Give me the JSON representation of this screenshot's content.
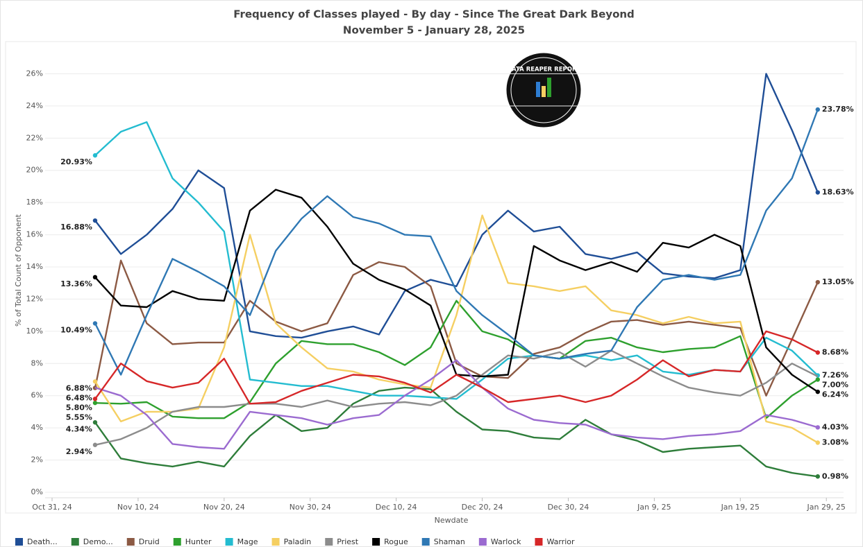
{
  "logo": "DATA REAPER REPORT",
  "chart_data": {
    "type": "line",
    "title": "Frequency of Classes played - By day - Since The Great Dark Beyond",
    "subtitle": "November 5 - January 28, 2025",
    "y_label": "% of Total Count of Opponent",
    "x_label": "Newdate",
    "x": [
      "2024-11-05",
      "2024-11-08",
      "2024-11-11",
      "2024-11-14",
      "2024-11-17",
      "2024-11-20",
      "2024-11-23",
      "2024-11-26",
      "2024-11-29",
      "2024-12-02",
      "2024-12-05",
      "2024-12-08",
      "2024-12-11",
      "2024-12-14",
      "2024-12-17",
      "2024-12-20",
      "2024-12-23",
      "2024-12-26",
      "2024-12-29",
      "2025-01-01",
      "2025-01-04",
      "2025-01-07",
      "2025-01-10",
      "2025-01-13",
      "2025-01-16",
      "2025-01-19",
      "2025-01-22",
      "2025-01-25",
      "2025-01-28"
    ],
    "xlim": [
      "2024-10-31",
      "2025-01-31"
    ],
    "xticks": [
      {
        "value": "2024-10-31",
        "label": "Oct 31, 24"
      },
      {
        "value": "2024-11-10",
        "label": "Nov 10, 24"
      },
      {
        "value": "2024-11-20",
        "label": "Nov 20, 24"
      },
      {
        "value": "2024-11-30",
        "label": "Nov 30, 24"
      },
      {
        "value": "2024-12-10",
        "label": "Dec 10, 24"
      },
      {
        "value": "2024-12-20",
        "label": "Dec 20, 24"
      },
      {
        "value": "2024-12-30",
        "label": "Dec 30, 24"
      },
      {
        "value": "2025-01-09",
        "label": "Jan 9, 25"
      },
      {
        "value": "2025-01-19",
        "label": "Jan 19, 25"
      },
      {
        "value": "2025-01-29",
        "label": "Jan 29, 25"
      }
    ],
    "ylim": [
      0,
      28
    ],
    "yticks": [
      {
        "value": 0,
        "label": "0%"
      },
      {
        "value": 2,
        "label": "2%"
      },
      {
        "value": 4,
        "label": "4%"
      },
      {
        "value": 6,
        "label": "6%"
      },
      {
        "value": 8,
        "label": "8%"
      },
      {
        "value": 10,
        "label": "10%"
      },
      {
        "value": 12,
        "label": "12%"
      },
      {
        "value": 14,
        "label": "14%"
      },
      {
        "value": 16,
        "label": "16%"
      },
      {
        "value": 18,
        "label": "18%"
      },
      {
        "value": 20,
        "label": "20%"
      },
      {
        "value": 22,
        "label": "22%"
      },
      {
        "value": 24,
        "label": "24%"
      },
      {
        "value": 26,
        "label": "26%"
      }
    ],
    "grid": true,
    "legend": "bottom",
    "series": [
      {
        "name": "Death...",
        "color": "#1f4e96",
        "values": [
          16.88,
          14.8,
          16.0,
          17.6,
          20.0,
          18.9,
          10.0,
          9.7,
          9.6,
          10.0,
          10.3,
          9.8,
          12.5,
          13.2,
          12.8,
          16.0,
          17.5,
          16.2,
          16.5,
          14.8,
          14.5,
          14.9,
          13.6,
          13.4,
          13.3,
          13.8,
          26.0,
          22.5,
          18.63
        ],
        "value_labels": [
          "16.88%",
          null,
          null,
          null,
          null,
          null,
          null,
          null,
          null,
          null,
          null,
          null,
          null,
          null,
          null,
          null,
          null,
          null,
          null,
          null,
          null,
          null,
          null,
          null,
          null,
          null,
          null,
          null,
          "18.63%"
        ]
      },
      {
        "name": "Demo...",
        "color": "#2e7d3a",
        "values": [
          4.34,
          2.1,
          1.8,
          1.6,
          1.9,
          1.6,
          3.5,
          4.8,
          3.8,
          4.0,
          5.5,
          6.3,
          6.5,
          6.4,
          5.0,
          3.9,
          3.8,
          3.4,
          3.3,
          4.5,
          3.6,
          3.2,
          2.5,
          2.7,
          2.8,
          2.9,
          1.6,
          1.2,
          0.98
        ],
        "value_labels": [
          "4.34%",
          null,
          null,
          null,
          null,
          null,
          null,
          null,
          null,
          null,
          null,
          null,
          null,
          null,
          null,
          null,
          null,
          null,
          null,
          null,
          null,
          null,
          null,
          null,
          null,
          null,
          null,
          null,
          "0.98%"
        ]
      },
      {
        "name": "Druid",
        "color": "#8c5a44",
        "values": [
          6.48,
          14.4,
          10.5,
          9.2,
          9.3,
          9.3,
          11.9,
          10.6,
          10.0,
          10.5,
          13.5,
          14.3,
          14.0,
          12.8,
          8.0,
          7.2,
          7.1,
          8.6,
          9.0,
          9.9,
          10.6,
          10.7,
          10.4,
          10.6,
          10.4,
          10.2,
          6.0,
          9.5,
          13.05
        ],
        "value_labels": [
          "6.48%",
          null,
          null,
          null,
          null,
          null,
          null,
          null,
          null,
          null,
          null,
          null,
          null,
          null,
          null,
          null,
          null,
          null,
          null,
          null,
          null,
          null,
          null,
          null,
          null,
          null,
          null,
          null,
          "13.05%"
        ]
      },
      {
        "name": "Hunter",
        "color": "#2ea02e",
        "values": [
          5.55,
          5.5,
          5.6,
          4.7,
          4.6,
          4.6,
          5.6,
          8.0,
          9.4,
          9.2,
          9.2,
          8.7,
          7.9,
          9.0,
          11.9,
          10.0,
          9.5,
          8.5,
          8.3,
          9.4,
          9.6,
          9.0,
          8.7,
          8.9,
          9.0,
          9.7,
          4.6,
          6.0,
          7.0
        ],
        "value_labels": [
          "5.55%",
          null,
          null,
          null,
          null,
          null,
          null,
          null,
          null,
          null,
          null,
          null,
          null,
          null,
          null,
          null,
          null,
          null,
          null,
          null,
          null,
          null,
          null,
          null,
          null,
          null,
          null,
          null,
          "7.00%"
        ]
      },
      {
        "name": "Mage",
        "color": "#24bcd0",
        "values": [
          20.93,
          22.4,
          23.0,
          19.5,
          18.0,
          16.2,
          7.0,
          6.8,
          6.6,
          6.6,
          6.3,
          6.0,
          6.0,
          5.9,
          5.8,
          7.0,
          8.3,
          8.5,
          8.3,
          8.5,
          8.2,
          8.5,
          7.5,
          7.3,
          7.6,
          7.5,
          9.6,
          8.8,
          7.26
        ],
        "value_labels": [
          "20.93%",
          null,
          null,
          null,
          null,
          null,
          null,
          null,
          null,
          null,
          null,
          null,
          null,
          null,
          null,
          null,
          null,
          null,
          null,
          null,
          null,
          null,
          null,
          null,
          null,
          null,
          null,
          null,
          "7.26%"
        ]
      },
      {
        "name": "Paladin",
        "color": "#f5cf62",
        "values": [
          6.88,
          4.4,
          5.0,
          5.0,
          5.2,
          9.0,
          16.0,
          10.5,
          9.0,
          7.7,
          7.5,
          7.0,
          6.7,
          6.5,
          11.0,
          17.2,
          13.0,
          12.8,
          12.5,
          12.8,
          11.3,
          11.0,
          10.5,
          10.9,
          10.5,
          10.6,
          4.4,
          4.0,
          3.08
        ],
        "value_labels": [
          "6.88%",
          null,
          null,
          null,
          null,
          null,
          null,
          null,
          null,
          null,
          null,
          null,
          null,
          null,
          null,
          null,
          null,
          null,
          null,
          null,
          null,
          null,
          null,
          null,
          null,
          null,
          null,
          null,
          "3.08%"
        ]
      },
      {
        "name": "Priest",
        "color": "#8c8c8c",
        "values": [
          2.94,
          3.3,
          4.0,
          5.0,
          5.3,
          5.3,
          5.5,
          5.5,
          5.3,
          5.7,
          5.3,
          5.5,
          5.6,
          5.4,
          6.0,
          7.3,
          8.5,
          8.3,
          8.7,
          7.8,
          8.8,
          8.0,
          7.2,
          6.5,
          6.2,
          6.0,
          6.8,
          8.0,
          7.2
        ],
        "value_labels": [
          "2.94%",
          null,
          null,
          null,
          null,
          null,
          null,
          null,
          null,
          null,
          null,
          null,
          null,
          null,
          null,
          null,
          null,
          null,
          null,
          null,
          null,
          null,
          null,
          null,
          null,
          null,
          null,
          null,
          null
        ]
      },
      {
        "name": "Rogue",
        "color": "#000000",
        "values": [
          13.36,
          11.6,
          11.5,
          12.5,
          12.0,
          11.9,
          17.5,
          18.8,
          18.3,
          16.5,
          14.2,
          13.2,
          12.6,
          11.6,
          7.3,
          7.2,
          7.3,
          15.3,
          14.4,
          13.8,
          14.3,
          13.7,
          15.5,
          15.2,
          16.0,
          15.3,
          9.0,
          7.3,
          6.24
        ],
        "value_labels": [
          "13.36%",
          null,
          null,
          null,
          null,
          null,
          null,
          null,
          null,
          null,
          null,
          null,
          null,
          null,
          null,
          null,
          null,
          null,
          null,
          null,
          null,
          null,
          null,
          null,
          null,
          null,
          null,
          null,
          "6.24%"
        ]
      },
      {
        "name": "Shaman",
        "color": "#2f78b4",
        "values": [
          10.49,
          7.3,
          11.0,
          14.5,
          13.7,
          12.8,
          11.0,
          15.0,
          17.0,
          18.4,
          17.1,
          16.7,
          16.0,
          15.9,
          12.5,
          11.0,
          9.8,
          8.5,
          8.3,
          8.6,
          8.8,
          11.5,
          13.2,
          13.5,
          13.2,
          13.5,
          17.5,
          19.5,
          23.78
        ],
        "value_labels": [
          "10.49%",
          null,
          null,
          null,
          null,
          null,
          null,
          null,
          null,
          null,
          null,
          null,
          null,
          null,
          null,
          null,
          null,
          null,
          null,
          null,
          null,
          null,
          null,
          null,
          null,
          null,
          null,
          null,
          "23.78%"
        ]
      },
      {
        "name": "Warlock",
        "color": "#9b6bd0",
        "values": [
          6.5,
          6.0,
          4.8,
          3.0,
          2.8,
          2.7,
          5.0,
          4.8,
          4.6,
          4.2,
          4.6,
          4.8,
          6.0,
          7.0,
          8.2,
          6.5,
          5.2,
          4.5,
          4.3,
          4.2,
          3.6,
          3.4,
          3.3,
          3.5,
          3.6,
          3.8,
          4.8,
          4.5,
          4.03
        ],
        "value_labels": [
          null,
          null,
          null,
          null,
          null,
          null,
          null,
          null,
          null,
          null,
          null,
          null,
          null,
          null,
          null,
          null,
          null,
          null,
          null,
          null,
          null,
          null,
          null,
          null,
          null,
          null,
          null,
          null,
          "4.03%"
        ]
      },
      {
        "name": "Warrior",
        "color": "#d62728",
        "values": [
          5.8,
          8.0,
          6.9,
          6.5,
          6.8,
          8.3,
          5.5,
          5.6,
          6.3,
          6.8,
          7.3,
          7.2,
          6.8,
          6.2,
          7.3,
          6.5,
          5.6,
          5.8,
          6.0,
          5.6,
          6.0,
          7.0,
          8.2,
          7.2,
          7.6,
          7.5,
          10.0,
          9.5,
          8.68
        ],
        "value_labels": [
          "5.80%",
          null,
          null,
          null,
          null,
          null,
          null,
          null,
          null,
          null,
          null,
          null,
          null,
          null,
          null,
          null,
          null,
          null,
          null,
          null,
          null,
          null,
          null,
          null,
          null,
          null,
          null,
          null,
          "8.68%"
        ]
      }
    ]
  }
}
